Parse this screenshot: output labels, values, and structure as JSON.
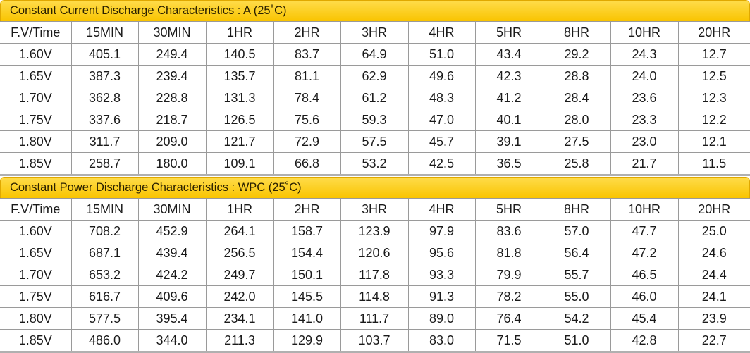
{
  "current": {
    "title": "Constant Current Discharge Characteristics : A (25˚C)",
    "headers": [
      "F.V/Time",
      "15MIN",
      "30MIN",
      "1HR",
      "2HR",
      "3HR",
      "4HR",
      "5HR",
      "8HR",
      "10HR",
      "20HR"
    ],
    "rows": [
      [
        "1.60V",
        "405.1",
        "249.4",
        "140.5",
        "83.7",
        "64.9",
        "51.0",
        "43.4",
        "29.2",
        "24.3",
        "12.7"
      ],
      [
        "1.65V",
        "387.3",
        "239.4",
        "135.7",
        "81.1",
        "62.9",
        "49.6",
        "42.3",
        "28.8",
        "24.0",
        "12.5"
      ],
      [
        "1.70V",
        "362.8",
        "228.8",
        "131.3",
        "78.4",
        "61.2",
        "48.3",
        "41.2",
        "28.4",
        "23.6",
        "12.3"
      ],
      [
        "1.75V",
        "337.6",
        "218.7",
        "126.5",
        "75.6",
        "59.3",
        "47.0",
        "40.1",
        "28.0",
        "23.3",
        "12.2"
      ],
      [
        "1.80V",
        "311.7",
        "209.0",
        "121.7",
        "72.9",
        "57.5",
        "45.7",
        "39.1",
        "27.5",
        "23.0",
        "12.1"
      ],
      [
        "1.85V",
        "258.7",
        "180.0",
        "109.1",
        "66.8",
        "53.2",
        "42.5",
        "36.5",
        "25.8",
        "21.7",
        "11.5"
      ]
    ]
  },
  "power": {
    "title": "Constant Power Discharge Characteristics : WPC (25˚C)",
    "headers": [
      "F.V/Time",
      "15MIN",
      "30MIN",
      "1HR",
      "2HR",
      "3HR",
      "4HR",
      "5HR",
      "8HR",
      "10HR",
      "20HR"
    ],
    "rows": [
      [
        "1.60V",
        "708.2",
        "452.9",
        "264.1",
        "158.7",
        "123.9",
        "97.9",
        "83.6",
        "57.0",
        "47.7",
        "25.0"
      ],
      [
        "1.65V",
        "687.1",
        "439.4",
        "256.5",
        "154.4",
        "120.6",
        "95.6",
        "81.8",
        "56.4",
        "47.2",
        "24.6"
      ],
      [
        "1.70V",
        "653.2",
        "424.2",
        "249.7",
        "150.1",
        "117.8",
        "93.3",
        "79.9",
        "55.7",
        "46.5",
        "24.4"
      ],
      [
        "1.75V",
        "616.7",
        "409.6",
        "242.0",
        "145.5",
        "114.8",
        "91.3",
        "78.2",
        "55.0",
        "46.0",
        "24.1"
      ],
      [
        "1.80V",
        "577.5",
        "395.4",
        "234.1",
        "141.0",
        "111.7",
        "89.0",
        "76.4",
        "54.2",
        "45.4",
        "23.9"
      ],
      [
        "1.85V",
        "486.0",
        "344.0",
        "211.3",
        "129.9",
        "103.7",
        "83.0",
        "71.5",
        "51.0",
        "42.8",
        "22.7"
      ]
    ]
  }
}
